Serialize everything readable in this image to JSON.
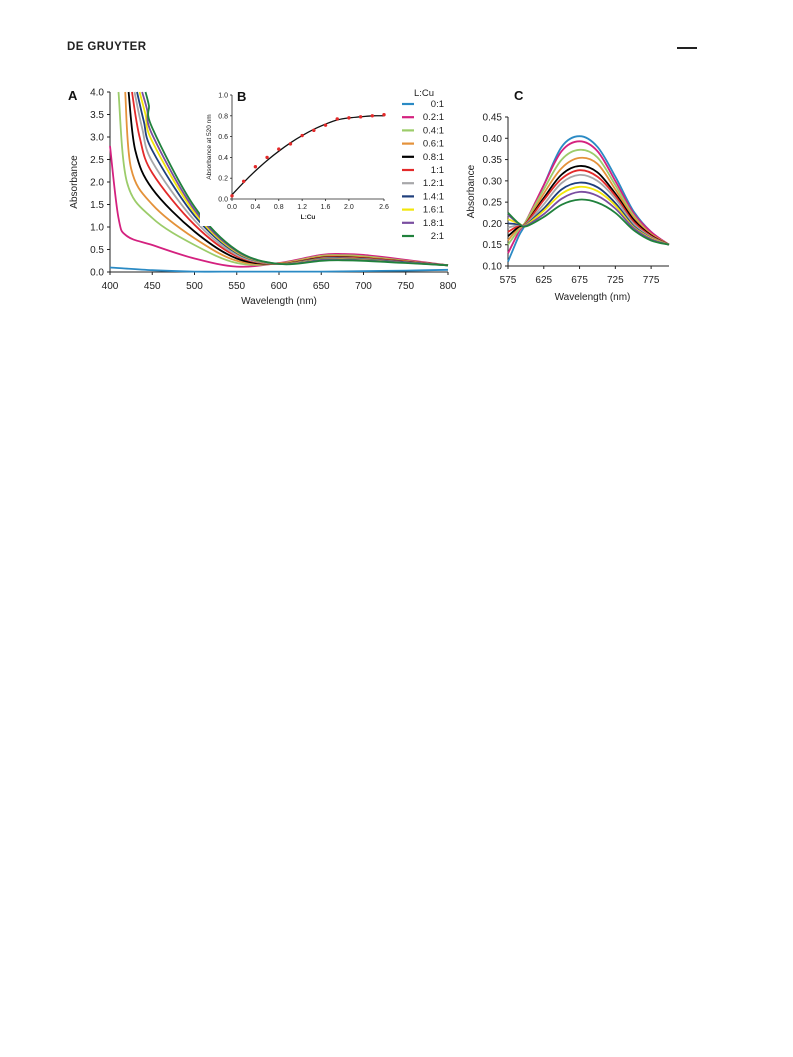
{
  "header": {
    "publisher": "DE GRUYTER"
  },
  "colors": {
    "0:1": "#2a8ac4",
    "0.2:1": "#d4217f",
    "0.4:1": "#9ccc6a",
    "0.6:1": "#e4923a",
    "0.8:1": "#000000",
    "1:1": "#e32a2a",
    "1.2:1": "#a7a7a9",
    "1.4:1": "#1f3f7c",
    "1.6:1": "#f2e60a",
    "1.8:1": "#7a4ea0",
    "2:1": "#20813c"
  },
  "legend": {
    "title": "L:Cu",
    "items": [
      "0:1",
      "0.2:1",
      "0.4:1",
      "0.6:1",
      "0.8:1",
      "1:1",
      "1.2:1",
      "1.4:1",
      "1.6:1",
      "1.8:1",
      "2:1"
    ]
  },
  "chart_data": [
    {
      "panel": "A",
      "type": "line",
      "xlabel": "Wavelength (nm)",
      "ylabel": "Absorbance",
      "xlim": [
        400,
        800
      ],
      "ylim": [
        0,
        4.0
      ],
      "xticks": [
        "400",
        "450",
        "500",
        "550",
        "600",
        "650",
        "700",
        "750",
        "800"
      ],
      "yticks": [
        "0.0",
        "0.5",
        "1.0",
        "1.5",
        "2.0",
        "2.5",
        "3.0",
        "3.5",
        "4.0"
      ],
      "grid": false,
      "series": [
        {
          "name": "0:1",
          "x": [
            400,
            450,
            500,
            550,
            600,
            650,
            700,
            750,
            800
          ],
          "y": [
            0.1,
            0.04,
            0.01,
            0.01,
            0.01,
            0.01,
            0.02,
            0.03,
            0.05
          ]
        },
        {
          "name": "0.2:1",
          "x": [
            400,
            410,
            420,
            450,
            500,
            550,
            600,
            650,
            675,
            700,
            750,
            800
          ],
          "y": [
            2.8,
            1.2,
            0.8,
            0.6,
            0.3,
            0.12,
            0.2,
            0.38,
            0.4,
            0.38,
            0.27,
            0.15
          ]
        },
        {
          "name": "0.4:1",
          "x": [
            410,
            420,
            450,
            500,
            550,
            600,
            650,
            675,
            700,
            750,
            800
          ],
          "y": [
            4.0,
            2.0,
            1.2,
            0.6,
            0.2,
            0.19,
            0.36,
            0.37,
            0.35,
            0.25,
            0.15
          ]
        },
        {
          "name": "0.6:1",
          "x": [
            418,
            425,
            450,
            500,
            550,
            600,
            650,
            675,
            700,
            750,
            800
          ],
          "y": [
            4.0,
            2.3,
            1.5,
            0.75,
            0.25,
            0.19,
            0.34,
            0.35,
            0.33,
            0.24,
            0.15
          ]
        },
        {
          "name": "0.8:1",
          "x": [
            422,
            430,
            450,
            500,
            550,
            600,
            650,
            675,
            700,
            750,
            800
          ],
          "y": [
            4.0,
            2.7,
            1.85,
            0.9,
            0.3,
            0.18,
            0.32,
            0.33,
            0.31,
            0.23,
            0.15
          ]
        },
        {
          "name": "1:1",
          "x": [
            426,
            435,
            450,
            500,
            550,
            600,
            650,
            675,
            700,
            750,
            800
          ],
          "y": [
            4.0,
            3.0,
            2.2,
            1.05,
            0.35,
            0.18,
            0.31,
            0.32,
            0.3,
            0.23,
            0.15
          ]
        },
        {
          "name": "1.2:1",
          "x": [
            429,
            438,
            450,
            500,
            550,
            600,
            650,
            675,
            700,
            750,
            800
          ],
          "y": [
            4.0,
            3.2,
            2.45,
            1.15,
            0.38,
            0.18,
            0.3,
            0.31,
            0.29,
            0.22,
            0.15
          ]
        },
        {
          "name": "1.4:1",
          "x": [
            432,
            440,
            450,
            500,
            550,
            600,
            650,
            675,
            700,
            750,
            800
          ],
          "y": [
            4.0,
            3.35,
            2.7,
            1.25,
            0.42,
            0.18,
            0.29,
            0.3,
            0.28,
            0.22,
            0.15
          ]
        },
        {
          "name": "1.6:1",
          "x": [
            435,
            442,
            450,
            500,
            550,
            600,
            650,
            675,
            700,
            750,
            800
          ],
          "y": [
            4.0,
            3.5,
            2.9,
            1.32,
            0.44,
            0.18,
            0.28,
            0.29,
            0.27,
            0.21,
            0.15
          ]
        },
        {
          "name": "1.8:1",
          "x": [
            438,
            444,
            450,
            500,
            550,
            600,
            650,
            675,
            700,
            750,
            800
          ],
          "y": [
            4.0,
            3.6,
            3.05,
            1.38,
            0.46,
            0.18,
            0.27,
            0.28,
            0.26,
            0.21,
            0.15
          ]
        },
        {
          "name": "2:1",
          "x": [
            442,
            446,
            450,
            500,
            550,
            600,
            650,
            675,
            700,
            750,
            800
          ],
          "y": [
            4.0,
            3.7,
            3.2,
            1.45,
            0.48,
            0.18,
            0.25,
            0.26,
            0.25,
            0.2,
            0.15
          ]
        }
      ]
    },
    {
      "panel": "B",
      "type": "scatter",
      "xlabel": "L:Cu",
      "ylabel": "Absorbance at 520 nm",
      "xlim": [
        0,
        2.6
      ],
      "ylim": [
        0,
        1.0
      ],
      "xticks": [
        "0.0",
        "0.4",
        "0.8",
        "1.2",
        "1.6",
        "2.0",
        "2.6"
      ],
      "yticks": [
        "0.0",
        "0.2",
        "0.4",
        "0.6",
        "0.8",
        "1.0"
      ],
      "grid": false,
      "points": {
        "x": [
          0.0,
          0.2,
          0.4,
          0.6,
          0.8,
          1.0,
          1.2,
          1.4,
          1.6,
          1.8,
          2.0,
          2.2,
          2.4,
          2.6
        ],
        "y": [
          0.03,
          0.17,
          0.31,
          0.4,
          0.48,
          0.53,
          0.61,
          0.66,
          0.71,
          0.77,
          0.78,
          0.79,
          0.8,
          0.81
        ]
      },
      "fit": {
        "x": [
          0.0,
          0.2,
          0.4,
          0.6,
          0.8,
          1.0,
          1.2,
          1.4,
          1.6,
          1.8,
          2.0,
          2.2,
          2.4,
          2.6
        ],
        "y": [
          0.04,
          0.16,
          0.27,
          0.37,
          0.46,
          0.54,
          0.61,
          0.67,
          0.72,
          0.76,
          0.78,
          0.79,
          0.8,
          0.8
        ]
      }
    },
    {
      "panel": "C",
      "type": "line",
      "xlabel": "Wavelength (nm)",
      "ylabel": "Absorbance",
      "xlim": [
        575,
        800
      ],
      "ylim": [
        0.1,
        0.45
      ],
      "xticks": [
        "575",
        "625",
        "675",
        "725",
        "775"
      ],
      "yticks": [
        "0.10",
        "0.15",
        "0.20",
        "0.25",
        "0.30",
        "0.35",
        "0.40",
        "0.45"
      ],
      "grid": false,
      "series": [
        {
          "name": "0:1",
          "x": [
            575,
            590,
            600,
            625,
            650,
            675,
            700,
            725,
            750,
            775,
            800
          ],
          "y": [
            0.11,
            0.17,
            0.2,
            0.29,
            0.38,
            0.405,
            0.38,
            0.31,
            0.23,
            0.18,
            0.15
          ]
        },
        {
          "name": "0.2:1",
          "x": [
            575,
            590,
            600,
            625,
            650,
            675,
            700,
            725,
            750,
            775,
            800
          ],
          "y": [
            0.13,
            0.18,
            0.205,
            0.29,
            0.37,
            0.393,
            0.37,
            0.3,
            0.225,
            0.18,
            0.15
          ]
        },
        {
          "name": "0.4:1",
          "x": [
            575,
            590,
            600,
            625,
            650,
            675,
            700,
            725,
            750,
            775,
            800
          ],
          "y": [
            0.15,
            0.185,
            0.205,
            0.28,
            0.35,
            0.373,
            0.355,
            0.29,
            0.22,
            0.175,
            0.15
          ]
        },
        {
          "name": "0.6:1",
          "x": [
            575,
            590,
            600,
            625,
            650,
            675,
            700,
            725,
            750,
            775,
            800
          ],
          "y": [
            0.16,
            0.19,
            0.2,
            0.27,
            0.33,
            0.354,
            0.34,
            0.28,
            0.215,
            0.175,
            0.15
          ]
        },
        {
          "name": "0.8:1",
          "x": [
            575,
            590,
            600,
            625,
            650,
            675,
            700,
            725,
            750,
            775,
            800
          ],
          "y": [
            0.17,
            0.192,
            0.2,
            0.26,
            0.315,
            0.335,
            0.32,
            0.27,
            0.21,
            0.172,
            0.15
          ]
        },
        {
          "name": "1:1",
          "x": [
            575,
            590,
            600,
            625,
            650,
            675,
            700,
            725,
            750,
            775,
            800
          ],
          "y": [
            0.18,
            0.195,
            0.2,
            0.255,
            0.305,
            0.325,
            0.31,
            0.265,
            0.205,
            0.17,
            0.15
          ]
        },
        {
          "name": "1.2:1",
          "x": [
            575,
            590,
            600,
            625,
            650,
            675,
            700,
            725,
            750,
            775,
            800
          ],
          "y": [
            0.19,
            0.197,
            0.198,
            0.245,
            0.295,
            0.314,
            0.3,
            0.258,
            0.2,
            0.168,
            0.15
          ]
        },
        {
          "name": "1.4:1",
          "x": [
            575,
            590,
            600,
            625,
            650,
            675,
            700,
            725,
            750,
            775,
            800
          ],
          "y": [
            0.2,
            0.198,
            0.197,
            0.235,
            0.28,
            0.296,
            0.285,
            0.248,
            0.195,
            0.166,
            0.15
          ]
        },
        {
          "name": "1.6:1",
          "x": [
            575,
            590,
            600,
            625,
            650,
            675,
            700,
            725,
            750,
            775,
            800
          ],
          "y": [
            0.21,
            0.2,
            0.196,
            0.23,
            0.27,
            0.286,
            0.276,
            0.242,
            0.192,
            0.165,
            0.15
          ]
        },
        {
          "name": "1.8:1",
          "x": [
            575,
            590,
            600,
            625,
            650,
            675,
            700,
            725,
            750,
            775,
            800
          ],
          "y": [
            0.22,
            0.2,
            0.195,
            0.222,
            0.258,
            0.274,
            0.265,
            0.235,
            0.19,
            0.163,
            0.15
          ]
        },
        {
          "name": "2:1",
          "x": [
            575,
            590,
            600,
            625,
            650,
            675,
            700,
            725,
            750,
            775,
            800
          ],
          "y": [
            0.225,
            0.2,
            0.193,
            0.215,
            0.244,
            0.256,
            0.249,
            0.225,
            0.185,
            0.16,
            0.15
          ]
        }
      ]
    }
  ]
}
